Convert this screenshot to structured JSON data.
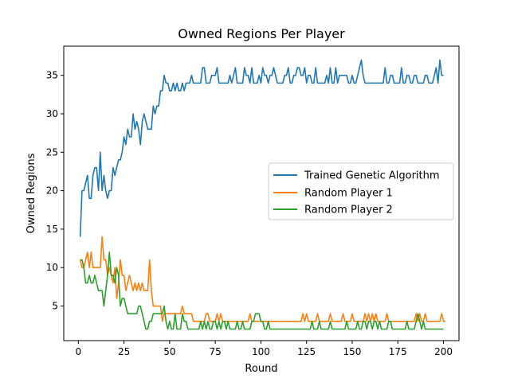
{
  "chart_data": {
    "type": "line",
    "title": "Owned Regions Per Player",
    "xlabel": "Round",
    "ylabel": "Owned Regions",
    "xlim": [
      -8,
      208.5
    ],
    "ylim": [
      0.5,
      38.8
    ],
    "xticks": [
      0,
      25,
      50,
      75,
      100,
      125,
      150,
      175,
      200
    ],
    "yticks": [
      5,
      10,
      15,
      20,
      25,
      30,
      35
    ],
    "grid": false,
    "legend_position": "center-right",
    "x_start": 1,
    "series": [
      {
        "name": "Trained Genetic Algorithm",
        "color": "#1f77b4",
        "values": [
          14,
          20,
          20,
          21,
          22,
          19,
          19,
          22,
          23,
          23,
          20,
          25,
          20,
          22,
          20,
          19,
          20,
          20,
          23,
          22,
          23,
          24,
          24,
          25,
          27,
          26,
          28,
          27,
          27,
          30,
          28,
          29,
          28,
          26,
          29,
          30,
          29,
          28,
          28,
          28,
          31,
          30,
          31,
          31,
          33,
          33,
          35,
          34,
          34,
          33,
          33,
          34,
          33,
          34,
          33,
          33,
          34,
          33,
          34,
          34,
          34,
          35,
          34,
          34,
          34,
          34,
          34,
          36,
          36,
          34,
          34,
          34,
          35,
          35,
          35,
          36,
          34,
          34,
          34,
          34,
          34,
          34,
          35,
          34,
          35,
          36,
          34,
          34,
          34,
          34,
          36,
          35,
          35,
          34,
          36,
          34,
          34,
          34,
          35,
          34,
          36,
          35,
          35,
          34,
          35,
          35,
          36,
          35,
          34,
          34,
          34,
          34,
          35,
          35,
          36,
          34,
          34,
          35,
          35,
          36,
          36,
          35,
          35,
          36,
          34,
          35,
          35,
          34,
          34,
          36,
          34,
          34,
          34,
          34,
          34,
          35,
          34,
          36,
          34,
          34,
          36,
          34,
          35,
          35,
          35,
          35,
          35,
          34,
          34,
          35,
          34,
          34,
          35,
          36,
          37,
          35,
          34,
          34,
          34,
          34,
          34,
          34,
          34,
          34,
          34,
          34,
          34,
          36,
          34,
          34,
          35,
          35,
          34,
          34,
          34,
          34,
          36,
          34,
          34,
          35,
          35,
          34,
          34,
          35,
          35,
          34,
          34,
          34,
          34,
          35,
          35,
          34,
          34,
          34,
          35,
          36,
          34,
          37,
          35,
          35
        ]
      },
      {
        "name": "Random Player 1",
        "color": "#ff7f0e",
        "values": [
          11,
          10,
          10,
          11,
          12,
          10,
          12,
          10,
          10,
          10,
          10,
          10,
          14,
          11,
          11,
          9,
          10,
          9,
          8,
          10,
          6,
          8,
          11,
          9,
          9,
          7,
          8,
          9,
          8,
          7,
          8,
          7,
          8,
          7,
          8,
          7,
          7,
          7,
          11,
          7,
          5,
          5,
          5,
          5,
          5,
          3,
          4,
          4,
          4,
          4,
          4,
          4,
          4,
          4,
          4,
          4,
          5,
          4,
          4,
          4,
          4,
          4,
          3,
          3,
          3,
          3,
          3,
          3,
          3,
          4,
          4,
          3,
          3,
          3,
          3,
          4,
          3,
          4,
          3,
          3,
          3,
          3,
          3,
          3,
          3,
          3,
          3,
          3,
          3,
          3,
          3,
          3,
          3,
          4,
          3,
          3,
          3,
          3,
          3,
          3,
          3,
          3,
          3,
          3,
          3,
          3,
          3,
          3,
          3,
          3,
          3,
          3,
          3,
          3,
          3,
          3,
          3,
          3,
          3,
          3,
          3,
          3,
          4,
          3,
          4,
          3,
          3,
          3,
          3,
          3,
          4,
          3,
          3,
          3,
          3,
          3,
          3,
          4,
          3,
          3,
          3,
          3,
          3,
          3,
          4,
          3,
          3,
          3,
          3,
          4,
          3,
          3,
          3,
          3,
          3,
          3,
          4,
          3,
          4,
          3,
          4,
          3,
          4,
          3,
          3,
          3,
          3,
          3,
          4,
          3,
          3,
          3,
          3,
          3,
          3,
          3,
          3,
          3,
          3,
          3,
          3,
          3,
          3,
          3,
          4,
          3,
          4,
          3,
          3,
          4,
          3,
          3,
          3,
          3,
          3,
          3,
          3,
          3,
          4,
          3,
          3
        ]
      },
      {
        "name": "Random Player 2",
        "color": "#2ca02c",
        "values": [
          11,
          11,
          10,
          8,
          8,
          9,
          8,
          8,
          9,
          8,
          7,
          7,
          7,
          5,
          7,
          9,
          12,
          9,
          9,
          8,
          10,
          9,
          5,
          6,
          6,
          5,
          4,
          4,
          4,
          4,
          4,
          4,
          5,
          5,
          4,
          3,
          2,
          2,
          3,
          3,
          4,
          4,
          4,
          4,
          4,
          4,
          5,
          3,
          2,
          3,
          2,
          2,
          4,
          2,
          2,
          2,
          4,
          3,
          3,
          2,
          2,
          2,
          2,
          2,
          2,
          2,
          3,
          2,
          3,
          2,
          3,
          2,
          2,
          3,
          3,
          2,
          3,
          2,
          3,
          3,
          2,
          3,
          2,
          2,
          2,
          2,
          3,
          2,
          2,
          3,
          2,
          2,
          2,
          2,
          3,
          3,
          4,
          4,
          4,
          3,
          3,
          2,
          2,
          3,
          2,
          2,
          2,
          2,
          2,
          2,
          2,
          2,
          2,
          2,
          2,
          2,
          2,
          2,
          2,
          2,
          2,
          2,
          2,
          2,
          2,
          2,
          2,
          3,
          2,
          2,
          2,
          3,
          2,
          2,
          2,
          2,
          2,
          3,
          2,
          2,
          2,
          2,
          2,
          2,
          2,
          2,
          3,
          2,
          2,
          2,
          2,
          2,
          3,
          2,
          2,
          3,
          3,
          2,
          3,
          3,
          2,
          3,
          3,
          2,
          3,
          2,
          2,
          2,
          2,
          3,
          3,
          2,
          2,
          2,
          2,
          2,
          2,
          2,
          2,
          3,
          2,
          2,
          2,
          2,
          3,
          4,
          3,
          2,
          3,
          2,
          2,
          2,
          2,
          2,
          2,
          2,
          2,
          2,
          2,
          2
        ]
      }
    ]
  }
}
